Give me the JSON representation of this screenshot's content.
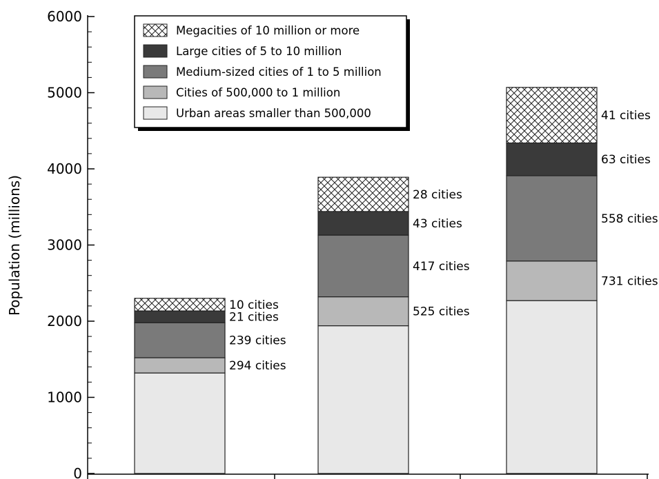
{
  "chart_data": {
    "type": "bar",
    "stacked": true,
    "title": "",
    "xlabel": "",
    "ylabel": "Population (millions)",
    "ylim": [
      0,
      6000
    ],
    "yticks": [
      0,
      1000,
      2000,
      3000,
      4000,
      5000,
      6000
    ],
    "categories": [
      "",
      "",
      ""
    ],
    "grid": false,
    "legend_position": "top-left",
    "series": [
      {
        "name": "Urban areas smaller than 500,000",
        "color": "#e8e8e8",
        "pattern": "solid",
        "values": [
          1320,
          1940,
          2270
        ]
      },
      {
        "name": "Cities of 500,000 to 1 million",
        "color": "#b8b8b8",
        "pattern": "solid",
        "values": [
          200,
          380,
          520
        ]
      },
      {
        "name": "Medium-sized cities of 1 to 5 million",
        "color": "#7a7a7a",
        "pattern": "solid",
        "values": [
          460,
          810,
          1120
        ]
      },
      {
        "name": "Large cities of 5 to 10 million",
        "color": "#3a3a3a",
        "pattern": "solid",
        "values": [
          155,
          310,
          430
        ]
      },
      {
        "name": "Megacities of 10 million or more",
        "color": "#ffffff",
        "pattern": "crosshatch",
        "values": [
          165,
          450,
          730
        ]
      }
    ],
    "annotations": [
      [
        {
          "series": 1,
          "text": "294 cities"
        },
        {
          "series": 2,
          "text": "239 cities"
        },
        {
          "series": 3,
          "text": "21 cities"
        },
        {
          "series": 4,
          "text": "10 cities"
        }
      ],
      [
        {
          "series": 1,
          "text": "525 cities"
        },
        {
          "series": 2,
          "text": "417 cities"
        },
        {
          "series": 3,
          "text": "43 cities"
        },
        {
          "series": 4,
          "text": "28 cities"
        }
      ],
      [
        {
          "series": 1,
          "text": "731 cities"
        },
        {
          "series": 2,
          "text": "558 cities"
        },
        {
          "series": 3,
          "text": "63 cities"
        },
        {
          "series": 4,
          "text": "41 cities"
        }
      ]
    ]
  }
}
